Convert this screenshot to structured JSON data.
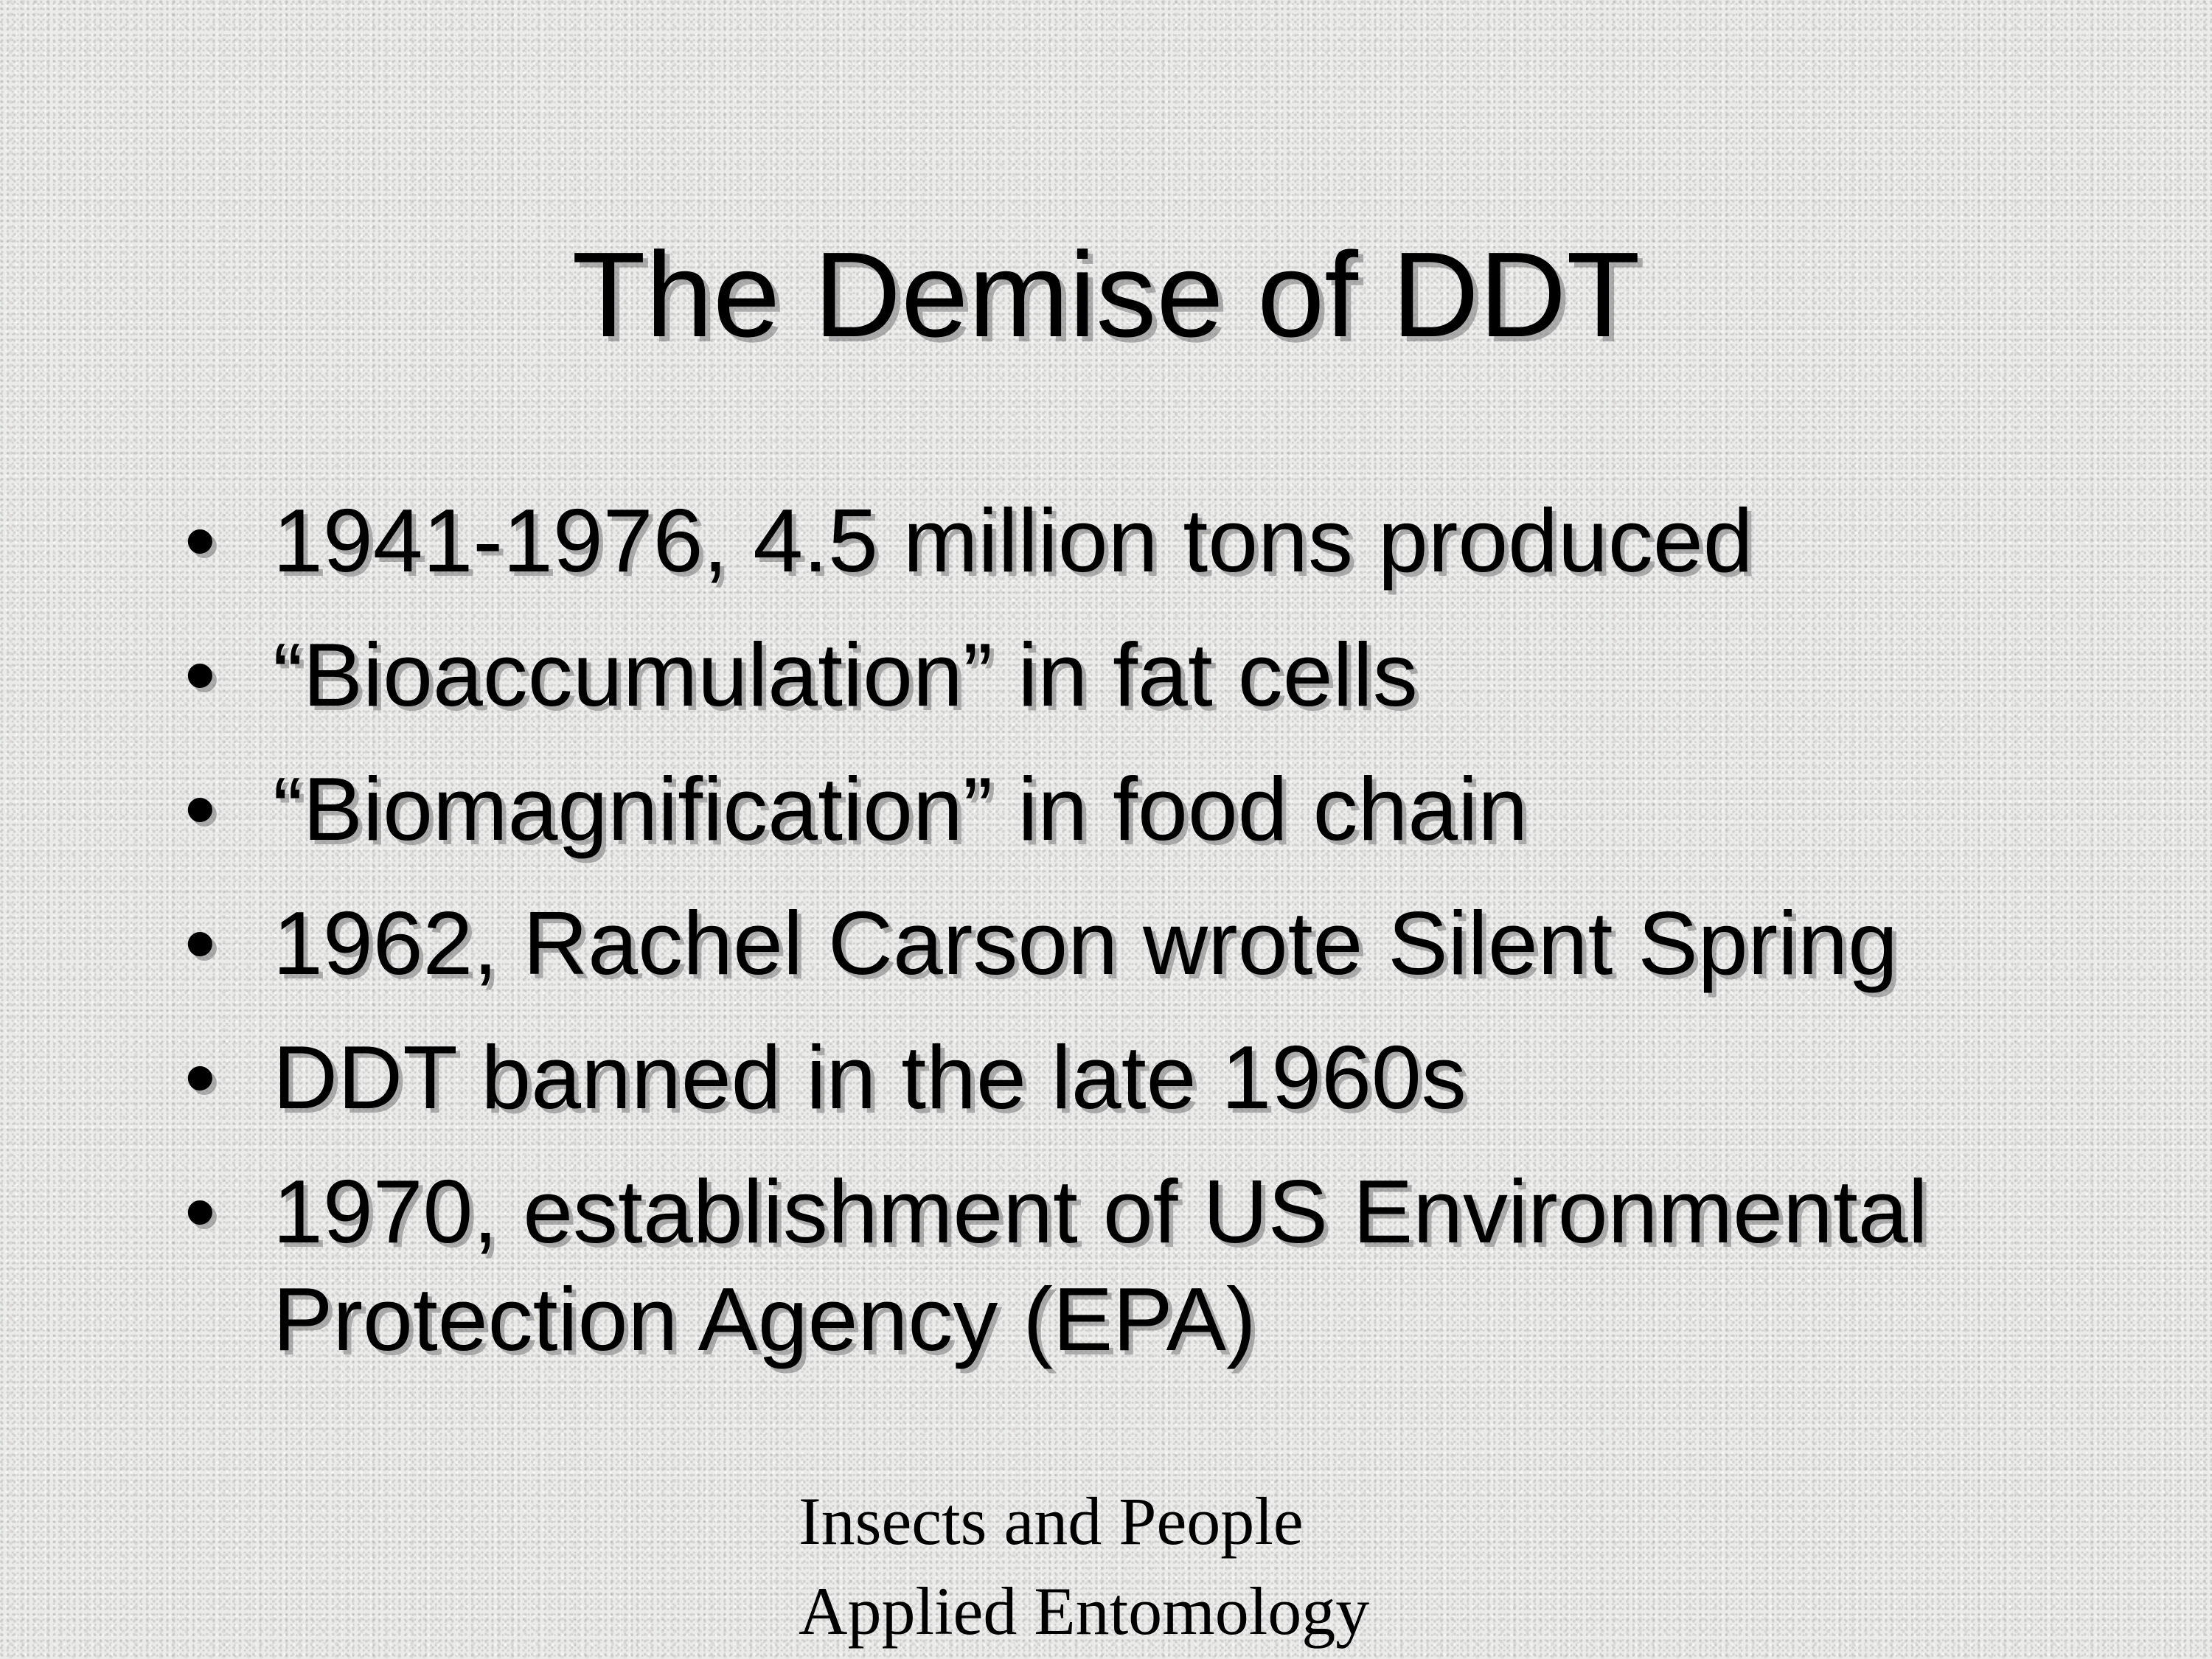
{
  "slide": {
    "title": "The Demise of DDT",
    "bullets": [
      "1941-1976, 4.5 million tons produced",
      "“Bioaccumulation” in fat cells",
      "“Biomagnification” in food chain",
      "1962, Rachel Carson wrote Silent Spring",
      "DDT banned in the late 1960s",
      "1970, establishment of US Environmental Protection Agency (EPA)"
    ],
    "footer": {
      "line1": "Insects and People",
      "line2": "Applied Entomology"
    }
  }
}
